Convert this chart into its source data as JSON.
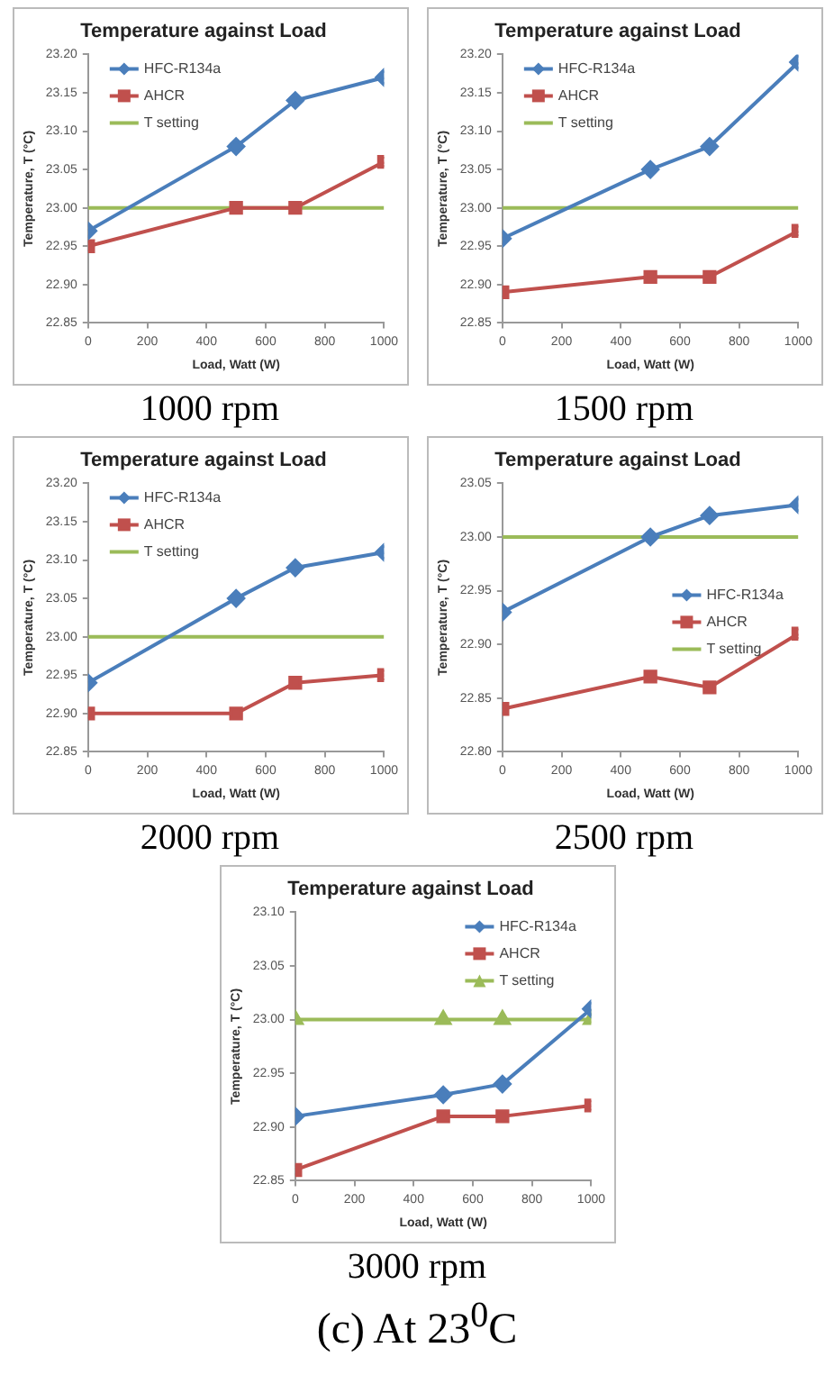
{
  "chart_data": [
    {
      "type": "line",
      "title": "Temperature against Load",
      "xlabel": "Load, Watt (W)",
      "ylabel": "Temperature, T (°C)",
      "annotations": [
        "1000 rpm"
      ],
      "legend": "top left",
      "grid": false,
      "x": [
        0,
        500,
        700,
        1000
      ],
      "xlim": [
        0,
        1000
      ],
      "xticks": [
        0,
        200,
        400,
        600,
        800,
        1000
      ],
      "ylim": [
        22.85,
        23.2
      ],
      "yticks": [
        {
          "value": 22.85,
          "label": "22.85"
        },
        {
          "value": 22.9,
          "label": "22.90"
        },
        {
          "value": 22.95,
          "label": "22.95"
        },
        {
          "value": 23,
          "label": "23.00"
        },
        {
          "value": 23.05,
          "label": "23.05"
        },
        {
          "value": 23.1,
          "label": "23.10"
        },
        {
          "value": 23.15,
          "label": "23.15"
        },
        {
          "value": 23.2,
          "label": "23.20"
        }
      ],
      "series": [
        {
          "name": "HFC-R134a",
          "color": "#4a7ebb",
          "marker": "diamond",
          "values": [
            22.97,
            23.08,
            23.14,
            23.17
          ]
        },
        {
          "name": "AHCR",
          "color": "#c0504d",
          "marker": "square",
          "values": [
            22.95,
            23.0,
            23.0,
            23.06
          ]
        },
        {
          "name": "T setting",
          "color": "#9bbb59",
          "marker": "none",
          "values": [
            23,
            23,
            23,
            23
          ]
        }
      ]
    },
    {
      "type": "line",
      "title": "Temperature against Load",
      "xlabel": "Load, Watt (W)",
      "ylabel": "Temperature, T (°C)",
      "annotations": [
        "1500 rpm"
      ],
      "legend": "top left",
      "grid": false,
      "x": [
        0,
        500,
        700,
        1000
      ],
      "xlim": [
        0,
        1000
      ],
      "xticks": [
        0,
        200,
        400,
        600,
        800,
        1000
      ],
      "ylim": [
        22.85,
        23.2
      ],
      "yticks": [
        {
          "value": 22.85,
          "label": "22.85"
        },
        {
          "value": 22.9,
          "label": "22.90"
        },
        {
          "value": 22.95,
          "label": "22.95"
        },
        {
          "value": 23,
          "label": "23.00"
        },
        {
          "value": 23.05,
          "label": "23.05"
        },
        {
          "value": 23.1,
          "label": "23.10"
        },
        {
          "value": 23.15,
          "label": "23.15"
        },
        {
          "value": 23.2,
          "label": "23.20"
        }
      ],
      "series": [
        {
          "name": "HFC-R134a",
          "color": "#4a7ebb",
          "marker": "diamond",
          "values": [
            22.96,
            23.05,
            23.08,
            23.19
          ]
        },
        {
          "name": "AHCR",
          "color": "#c0504d",
          "marker": "square",
          "values": [
            22.89,
            22.91,
            22.91,
            22.97
          ]
        },
        {
          "name": "T setting",
          "color": "#9bbb59",
          "marker": "none",
          "values": [
            23,
            23,
            23,
            23
          ]
        }
      ]
    },
    {
      "type": "line",
      "title": "Temperature against Load",
      "xlabel": "Load, Watt (W)",
      "ylabel": "Temperature, T (°C)",
      "annotations": [
        "2000 rpm"
      ],
      "legend": "top left",
      "grid": false,
      "x": [
        0,
        500,
        700,
        1000
      ],
      "xlim": [
        0,
        1000
      ],
      "xticks": [
        0,
        200,
        400,
        600,
        800,
        1000
      ],
      "ylim": [
        22.85,
        23.2
      ],
      "yticks": [
        {
          "value": 22.85,
          "label": "22.85"
        },
        {
          "value": 22.9,
          "label": "22.90"
        },
        {
          "value": 22.95,
          "label": "22.95"
        },
        {
          "value": 23,
          "label": "23.00"
        },
        {
          "value": 23.05,
          "label": "23.05"
        },
        {
          "value": 23.1,
          "label": "23.10"
        },
        {
          "value": 23.15,
          "label": "23.15"
        },
        {
          "value": 23.2,
          "label": "23.20"
        }
      ],
      "series": [
        {
          "name": "HFC-R134a",
          "color": "#4a7ebb",
          "marker": "diamond",
          "values": [
            22.94,
            23.05,
            23.09,
            23.11
          ]
        },
        {
          "name": "AHCR",
          "color": "#c0504d",
          "marker": "square",
          "values": [
            22.9,
            22.9,
            22.94,
            22.95
          ]
        },
        {
          "name": "T setting",
          "color": "#9bbb59",
          "marker": "none",
          "values": [
            23,
            23,
            23,
            23
          ]
        }
      ]
    },
    {
      "type": "line",
      "title": "Temperature against Load",
      "xlabel": "Load, Watt (W)",
      "ylabel": "Temperature, T (°C)",
      "annotations": [
        "2500 rpm"
      ],
      "legend": "right",
      "grid": false,
      "x": [
        0,
        500,
        700,
        1000
      ],
      "xlim": [
        0,
        1000
      ],
      "xticks": [
        0,
        200,
        400,
        600,
        800,
        1000
      ],
      "ylim": [
        22.8,
        23.05
      ],
      "yticks": [
        {
          "value": 22.8,
          "label": "22.80"
        },
        {
          "value": 22.85,
          "label": "22.85"
        },
        {
          "value": 22.9,
          "label": "22.90"
        },
        {
          "value": 22.95,
          "label": "22.95"
        },
        {
          "value": 23,
          "label": "23.00"
        },
        {
          "value": 23.05,
          "label": "23.05"
        }
      ],
      "series": [
        {
          "name": "HFC-R134a",
          "color": "#4a7ebb",
          "marker": "diamond",
          "values": [
            22.93,
            23.0,
            23.02,
            23.03
          ]
        },
        {
          "name": "AHCR",
          "color": "#c0504d",
          "marker": "square",
          "values": [
            22.84,
            22.87,
            22.86,
            22.91
          ]
        },
        {
          "name": "T setting",
          "color": "#9bbb59",
          "marker": "none",
          "values": [
            23,
            23,
            23,
            23
          ]
        }
      ]
    },
    {
      "type": "line",
      "title": "Temperature against Load",
      "xlabel": "Load, Watt (W)",
      "ylabel": "Temperature, T (°C)",
      "annotations": [
        "3000 rpm",
        "(c) At 23$^{0}$C"
      ],
      "legend": "top right",
      "grid": false,
      "x": [
        0,
        500,
        700,
        1000
      ],
      "xlim": [
        0,
        1000
      ],
      "xticks": [
        0,
        200,
        400,
        600,
        800,
        1000
      ],
      "ylim": [
        22.85,
        23.1
      ],
      "yticks": [
        {
          "value": 22.85,
          "label": "22.85"
        },
        {
          "value": 22.9,
          "label": "22.90"
        },
        {
          "value": 22.95,
          "label": "22.95"
        },
        {
          "value": 23,
          "label": "23.00"
        },
        {
          "value": 23.05,
          "label": "23.05"
        },
        {
          "value": 23.1,
          "label": "23.10"
        }
      ],
      "series": [
        {
          "name": "HFC-R134a",
          "color": "#4a7ebb",
          "marker": "diamond",
          "values": [
            22.91,
            22.93,
            22.94,
            23.01
          ]
        },
        {
          "name": "AHCR",
          "color": "#c0504d",
          "marker": "square",
          "values": [
            22.86,
            22.91,
            22.91,
            22.92
          ]
        },
        {
          "name": "T setting",
          "color": "#9bbb59",
          "marker": "triangle",
          "values": [
            23,
            23,
            23,
            23
          ]
        }
      ]
    }
  ]
}
